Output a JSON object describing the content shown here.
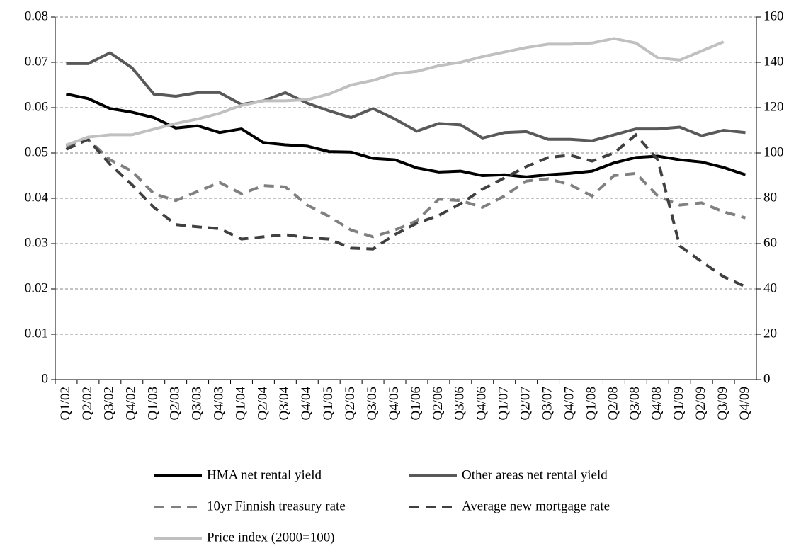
{
  "chart_data": {
    "type": "line",
    "categories": [
      "Q1/02",
      "Q2/02",
      "Q3/02",
      "Q4/02",
      "Q1/03",
      "Q2/03",
      "Q3/03",
      "Q4/03",
      "Q1/04",
      "Q2/04",
      "Q3/04",
      "Q4/04",
      "Q1/05",
      "Q2/05",
      "Q3/05",
      "Q4/05",
      "Q1/06",
      "Q2/06",
      "Q3/06",
      "Q4/06",
      "Q1/07",
      "Q2/07",
      "Q3/07",
      "Q4/07",
      "Q1/08",
      "Q2/08",
      "Q3/08",
      "Q4/08",
      "Q1/09",
      "Q2/09",
      "Q3/09",
      "Q4/09"
    ],
    "series": [
      {
        "name": "HMA net rental yield",
        "color": "#000000",
        "dashed": false,
        "values": [
          0.063,
          0.062,
          0.0598,
          0.059,
          0.0578,
          0.0555,
          0.056,
          0.0545,
          0.0553,
          0.0523,
          0.0518,
          0.0515,
          0.0503,
          0.0502,
          0.0488,
          0.0485,
          0.0467,
          0.0458,
          0.046,
          0.045,
          0.0452,
          0.0447,
          0.0452,
          0.0455,
          0.046,
          0.0478,
          0.049,
          0.0493,
          0.0485,
          0.048,
          0.0468,
          0.0452
        ]
      },
      {
        "name": "Other areas net rental yield",
        "color": "#595959",
        "dashed": false,
        "values": [
          0.0697,
          0.0697,
          0.0721,
          0.0688,
          0.063,
          0.0625,
          0.0633,
          0.0633,
          0.0607,
          0.0615,
          0.0633,
          0.061,
          0.0593,
          0.0578,
          0.0598,
          0.0575,
          0.0548,
          0.0565,
          0.0562,
          0.0533,
          0.0545,
          0.0547,
          0.053,
          0.053,
          0.0527,
          0.054,
          0.0553,
          0.0553,
          0.0557,
          0.0538,
          0.055,
          0.0545
        ]
      },
      {
        "name": "10yr Finnish treasury rate",
        "color": "#808080",
        "dashed": true,
        "values": [
          0.0515,
          0.053,
          0.0485,
          0.046,
          0.041,
          0.0395,
          0.0415,
          0.0435,
          0.041,
          0.0428,
          0.0425,
          0.0385,
          0.036,
          0.033,
          0.0315,
          0.033,
          0.035,
          0.0398,
          0.0395,
          0.038,
          0.0405,
          0.0438,
          0.0443,
          0.043,
          0.0405,
          0.045,
          0.0455,
          0.0405,
          0.0385,
          0.039,
          0.037,
          0.0357
        ]
      },
      {
        "name": "Average new mortgage rate",
        "color": "#404040",
        "dashed": true,
        "values": [
          0.0508,
          0.053,
          0.0475,
          0.043,
          0.038,
          0.0342,
          0.0337,
          0.0333,
          0.031,
          0.0315,
          0.032,
          0.0313,
          0.031,
          0.029,
          0.0288,
          0.032,
          0.0345,
          0.0362,
          0.0388,
          0.042,
          0.0445,
          0.047,
          0.049,
          0.0495,
          0.0482,
          0.05,
          0.054,
          0.0485,
          0.0295,
          0.026,
          0.0227,
          0.0205
        ]
      },
      {
        "name": "Price index (2000=100)",
        "color": "#c0c0c0",
        "dashed": false,
        "axis": "y2",
        "values": [
          103.5,
          107,
          108,
          108,
          110.5,
          113,
          115,
          117.5,
          121,
          123,
          123,
          123.5,
          126,
          130,
          132,
          135,
          136,
          138.5,
          140,
          142.5,
          144.5,
          146.5,
          148,
          148,
          148.5,
          150.5,
          148.5,
          142,
          141,
          145,
          149,
          null
        ]
      }
    ],
    "ylim": [
      0,
      0.08
    ],
    "yticks": [
      0,
      0.01,
      0.02,
      0.03,
      0.04,
      0.05,
      0.06,
      0.07,
      0.08
    ],
    "y2lim": [
      0,
      160
    ],
    "y2ticks": [
      0,
      20,
      40,
      60,
      80,
      100,
      120,
      140,
      160
    ],
    "grid": true,
    "legend": "bottom"
  }
}
